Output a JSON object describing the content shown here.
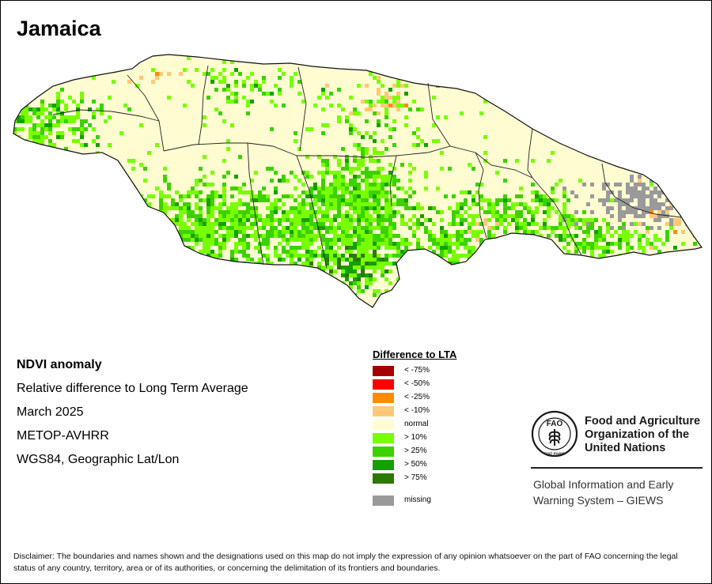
{
  "map": {
    "title": "Jamaica",
    "parish_count": 14,
    "info_lines": [
      "NDVI anomaly",
      "Relative difference to Long Term Average",
      "March 2025",
      "METOP-AVHRR",
      "WGS84, Geographic Lat/Lon"
    ]
  },
  "legend": {
    "title": "Difference to LTA",
    "classes": [
      {
        "label": "< -75%",
        "color": "#a50000"
      },
      {
        "label": "< -50%",
        "color": "#ff0000"
      },
      {
        "label": "< -25%",
        "color": "#ff8c00"
      },
      {
        "label": "< -10%",
        "color": "#ffc878"
      },
      {
        "label": "normal",
        "color": "#fffcd2"
      },
      {
        "label": "> 10%",
        "color": "#78ff00"
      },
      {
        "label": "> 25%",
        "color": "#3cd200"
      },
      {
        "label": "> 50%",
        "color": "#14a000"
      },
      {
        "label": "> 75%",
        "color": "#2d7800"
      }
    ],
    "missing": {
      "label": "missing",
      "color": "#9a9a9a"
    }
  },
  "organization": {
    "name_lines": [
      "Food and Agriculture",
      "Organization of the",
      "United Nations"
    ],
    "logo_text": [
      "FAO",
      "FIAT PANIS"
    ],
    "system_lines": [
      "Global Information and Early",
      "Warning System – GIEWS"
    ]
  },
  "disclaimer": "Disclaimer: The boundaries and names shown and the designations used on this map do not imply the expression of any opinion whatsoever on the part of FAO concerning the legal status of any country, territory, area or of its authorities, or concerning the delimitation of its frontiers and boundaries."
}
